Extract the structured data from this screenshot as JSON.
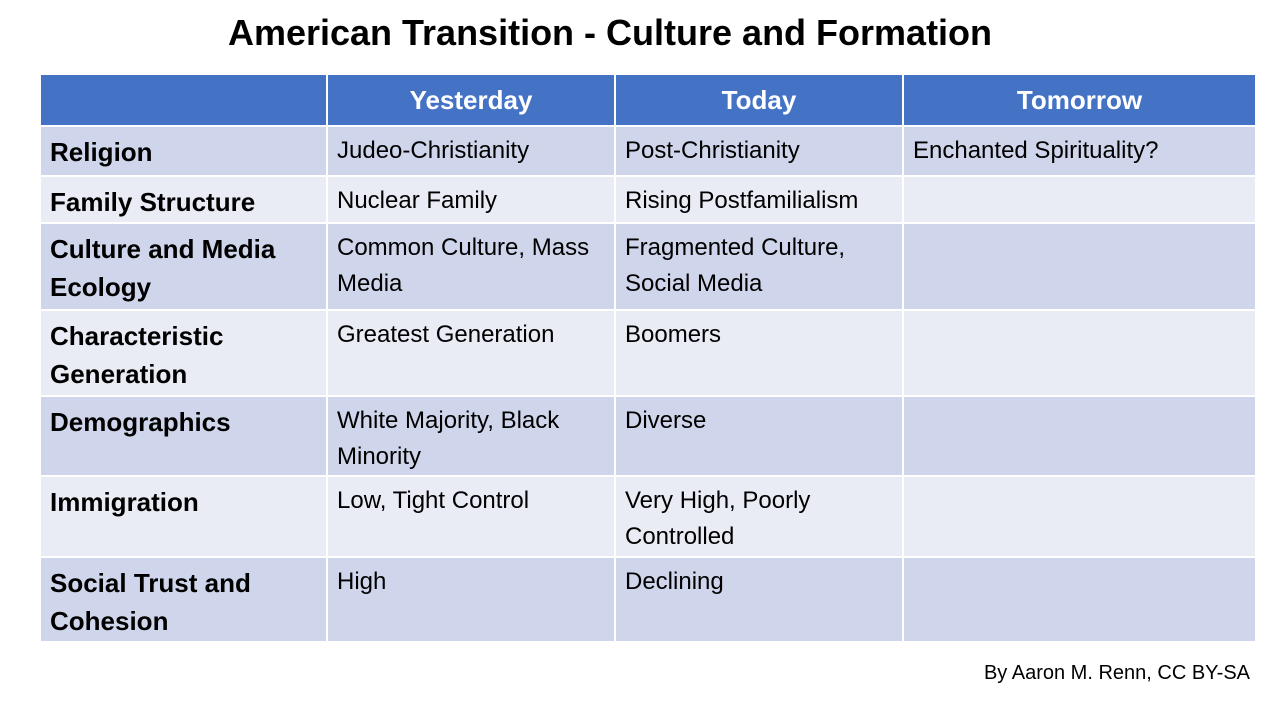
{
  "title": "American Transition - Culture and Formation",
  "table": {
    "header": [
      "Yesterday",
      "Today",
      "Tomorrow"
    ],
    "rows": [
      [
        "Religion",
        "Judeo-Christianity",
        "Post-Christianity",
        "Enchanted Spirituality?"
      ],
      [
        "Family Structure",
        "Nuclear Family",
        "Rising Postfamilialism"
      ],
      [
        "Culture and Media Ecology",
        "Common Culture, Mass Media",
        "Fragmented Culture, Social Media"
      ],
      [
        "Characteristic Generation",
        "Greatest Generation",
        "Boomers"
      ],
      [
        "Demographics",
        "White Majority, Black Minority",
        "Diverse"
      ],
      [
        "Immigration",
        "Low, Tight Control",
        "Very High, Poorly Controlled"
      ],
      [
        "Social Trust and Cohesion",
        "High",
        "Declining"
      ]
    ]
  },
  "credit": "By Aaron M. Renn, CC BY-SA"
}
